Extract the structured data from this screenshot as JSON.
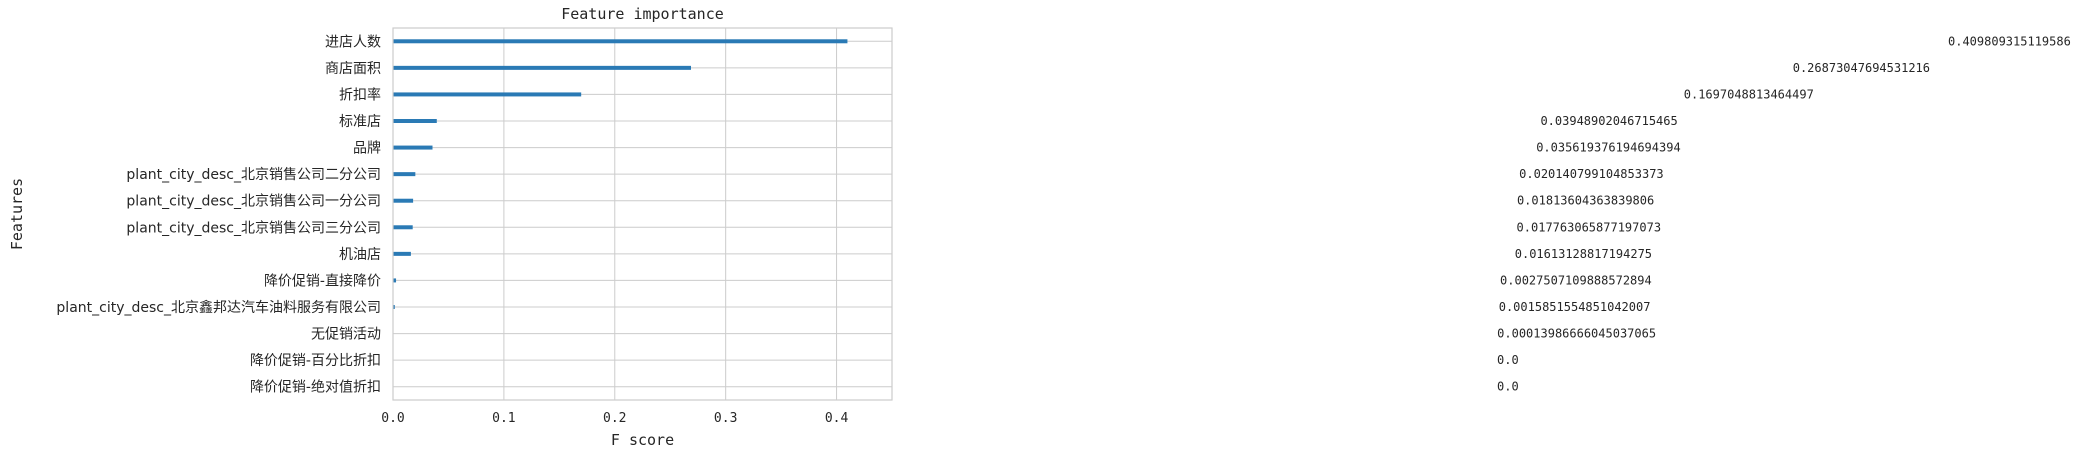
{
  "chart_data": {
    "type": "bar",
    "orientation": "horizontal",
    "title": "Feature importance",
    "xlabel": "F score",
    "ylabel": "Features",
    "xlim": [
      0,
      0.45
    ],
    "xticks": [
      0.0,
      0.1,
      0.2,
      0.3,
      0.4
    ],
    "xtick_labels": [
      "0.0",
      "0.1",
      "0.2",
      "0.3",
      "0.4"
    ],
    "grid": true,
    "bar_color": "#2a7ab5",
    "categories": [
      "进店人数",
      "商店面积",
      "折扣率",
      "标准店",
      "品牌",
      "plant_city_desc_北京销售公司二分公司",
      "plant_city_desc_北京销售公司一分公司",
      "plant_city_desc_北京销售公司三分公司",
      "机油店",
      "降价促销-直接降价",
      "plant_city_desc_北京鑫邦达汽车油料服务有限公司",
      "无促销活动",
      "降价促销-百分比折扣",
      "降价促销-绝对值折扣"
    ],
    "values": [
      0.409809315119586,
      0.26873047694531216,
      0.1697048813464497,
      0.03948902046715465,
      0.035619376194694394,
      0.020140799104853373,
      0.01813604363839806,
      0.017763065877197073,
      0.01613128817194275,
      0.0027507109888572894,
      0.0015851554851042007,
      0.00013986666045037065,
      0.0,
      0.0
    ],
    "value_labels": [
      "0.409809315119586",
      "0.26873047694531216",
      "0.1697048813464497",
      "0.03948902046715465",
      "0.035619376194694394",
      "0.020140799104853373",
      "0.01813604363839806",
      "0.017763065877197073",
      "0.01613128817194275",
      "0.0027507109888572894",
      "0.0015851554851042007",
      "0.00013986666045037065",
      "0.0",
      "0.0"
    ]
  }
}
